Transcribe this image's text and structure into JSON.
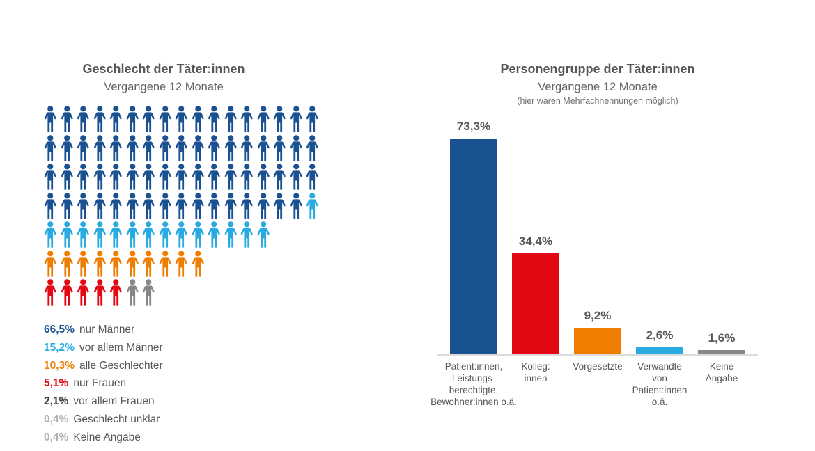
{
  "left_chart": {
    "legend": [
      {
        "pct": "66,5%",
        "label": "nur Männer",
        "pct_color": "#1a5190"
      },
      {
        "pct": "15,2%",
        "label": "vor allem Männer",
        "pct_color": "#29abe2"
      },
      {
        "pct": "10,3%",
        "label": "alle Geschlechter",
        "pct_color": "#ef7d00"
      },
      {
        "pct": "5,1%",
        "label": "nur Frauen",
        "pct_color": "#e30613"
      },
      {
        "pct": "2,1%",
        "label": "vor allem Frauen",
        "pct_color": "#3c3c3b"
      },
      {
        "pct": "0,4%",
        "label": "Geschlecht unklar",
        "pct_color": "#b2b2b2"
      },
      {
        "pct": "0,4%",
        "label": "Keine Angabe",
        "pct_color": "#b2b2b2"
      }
    ]
  },
  "chart_data": [
    {
      "type": "pictogram",
      "title": "Geschlecht der Täter:innen",
      "subtitle": "Vergangene 12 Monate",
      "categories": [
        "nur Männer",
        "vor allem Männer",
        "alle Geschlechter",
        "nur Frauen",
        "vor allem Frauen",
        "Geschlecht unklar",
        "Keine Angabe"
      ],
      "values": [
        66.5,
        15.2,
        10.3,
        5.1,
        2.1,
        0.4,
        0.4
      ],
      "value_labels": [
        "66,5%",
        "15,2%",
        "10,3%",
        "5,1%",
        "2,1%",
        "0,4%",
        "0,4%"
      ],
      "category_colors": [
        "#1a5190",
        "#29abe2",
        "#ef7d00",
        "#e30613",
        "#878787",
        "#b2b2b2",
        "#b2b2b2"
      ],
      "icons_total": 99,
      "icon_rows": [
        [
          {
            "color": "#1a5190",
            "count": 17
          }
        ],
        [
          {
            "color": "#1a5190",
            "count": 17
          }
        ],
        [
          {
            "color": "#1a5190",
            "count": 17
          }
        ],
        [
          {
            "color": "#1a5190",
            "count": 16
          },
          {
            "color": "#29abe2",
            "count": 1
          }
        ],
        [
          {
            "color": "#29abe2",
            "count": 14
          }
        ],
        [
          {
            "color": "#ef7d00",
            "count": 10
          }
        ],
        [
          {
            "color": "#e30613",
            "count": 5
          },
          {
            "color": "#878787",
            "count": 2
          }
        ]
      ]
    },
    {
      "type": "bar",
      "title": "Personengruppe der Täter:innen",
      "subtitle": "Vergangene 12 Monate",
      "note": "(hier waren Mehrfachnennungen möglich)",
      "categories": [
        "Patient:innen, Leistungsberechtigte, Bewohner:innen o.ä.",
        "Kolleg:innen",
        "Vorgesetzte",
        "Verwandte von Patient:innen o.ä.",
        "Keine Angabe"
      ],
      "values": [
        73.3,
        34.4,
        9.2,
        2.6,
        1.6
      ],
      "value_labels": [
        "73,3%",
        "34,4%",
        "9,2%",
        "2,6%",
        "1,6%"
      ],
      "colors": [
        "#1a5190",
        "#e30613",
        "#ef7d00",
        "#29abe2",
        "#878787"
      ],
      "tick_lines": [
        [
          "Patient:innen,",
          "Leistungs-",
          "berechtigte,",
          "Bewohner:innen o.ä."
        ],
        [
          "Kolleg:",
          "innen"
        ],
        [
          "Vorgesetzte"
        ],
        [
          "Verwandte",
          "von",
          "Patient:innen",
          "o.ä."
        ],
        [
          "Keine",
          "Angabe"
        ]
      ],
      "ylim": [
        0,
        80
      ],
      "grid": false,
      "legend_position": "none"
    }
  ]
}
